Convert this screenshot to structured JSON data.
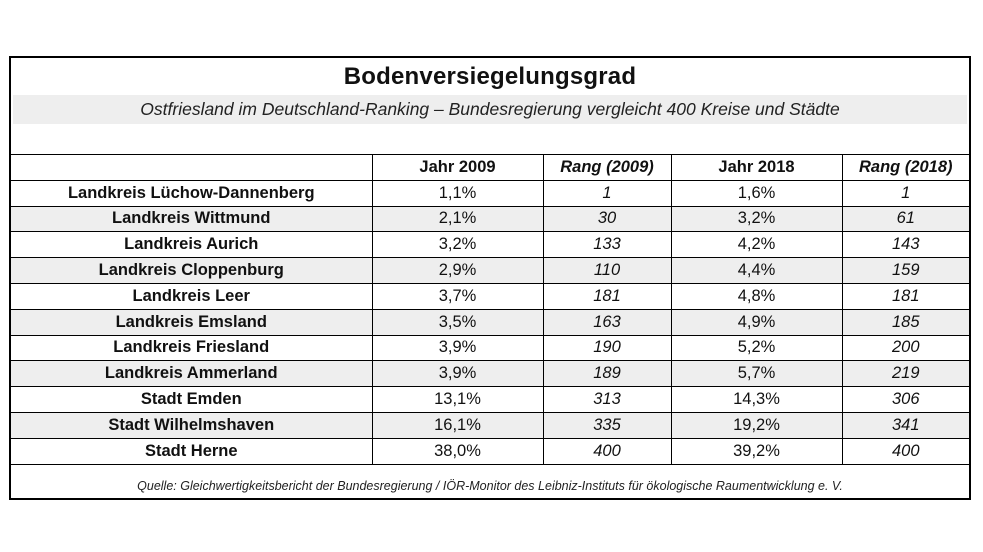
{
  "chart_data": {
    "type": "table",
    "title": "Bodenversiegelungsgrad",
    "subtitle": "Ostfriesland im Deutschland-Ranking – Bundesregierung vergleicht 400 Kreise und Städte",
    "columns": [
      "",
      "Jahr 2009",
      "Rang (2009)",
      "Jahr 2018",
      "Rang (2018)"
    ],
    "rows": [
      {
        "name": "Landkreis Lüchow-Dannenberg",
        "jahr_2009": "1,1%",
        "rang_2009": "1",
        "jahr_2018": "1,6%",
        "rang_2018": "1"
      },
      {
        "name": "Landkreis Wittmund",
        "jahr_2009": "2,1%",
        "rang_2009": "30",
        "jahr_2018": "3,2%",
        "rang_2018": "61"
      },
      {
        "name": "Landkreis Aurich",
        "jahr_2009": "3,2%",
        "rang_2009": "133",
        "jahr_2018": "4,2%",
        "rang_2018": "143"
      },
      {
        "name": "Landkreis Cloppenburg",
        "jahr_2009": "2,9%",
        "rang_2009": "110",
        "jahr_2018": "4,4%",
        "rang_2018": "159"
      },
      {
        "name": "Landkreis Leer",
        "jahr_2009": "3,7%",
        "rang_2009": "181",
        "jahr_2018": "4,8%",
        "rang_2018": "181"
      },
      {
        "name": "Landkreis Emsland",
        "jahr_2009": "3,5%",
        "rang_2009": "163",
        "jahr_2018": "4,9%",
        "rang_2018": "185"
      },
      {
        "name": "Landkreis Friesland",
        "jahr_2009": "3,9%",
        "rang_2009": "190",
        "jahr_2018": "5,2%",
        "rang_2018": "200"
      },
      {
        "name": "Landkreis Ammerland",
        "jahr_2009": "3,9%",
        "rang_2009": "189",
        "jahr_2018": "5,7%",
        "rang_2018": "219"
      },
      {
        "name": "Stadt Emden",
        "jahr_2009": "13,1%",
        "rang_2009": "313",
        "jahr_2018": "14,3%",
        "rang_2018": "306"
      },
      {
        "name": "Stadt Wilhelmshaven",
        "jahr_2009": "16,1%",
        "rang_2009": "335",
        "jahr_2018": "19,2%",
        "rang_2018": "341"
      },
      {
        "name": "Stadt Herne",
        "jahr_2009": "38,0%",
        "rang_2009": "400",
        "jahr_2018": "39,2%",
        "rang_2018": "400"
      }
    ],
    "source": "Quelle: Gleichwertigkeitsbericht der Bundesregierung / IÖR-Monitor des Leibniz-Instituts für ökologische Raumentwicklung e. V.",
    "shade_color": "#eeeeee"
  }
}
